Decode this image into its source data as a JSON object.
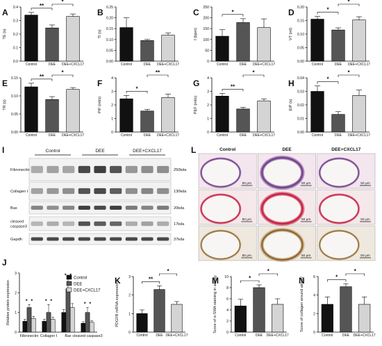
{
  "palette": {
    "control": "#111111",
    "dee": "#555555",
    "cxcl": "#d4d4d4",
    "blot_bg": "#f2f2f2",
    "band": "#2b2b2b",
    "he_bg": "#f3e6ee",
    "he_tissue": "#b786b8",
    "he_nuclei": "#5a3f86",
    "sr_bg": "#f5e8eb",
    "sr_tissue": "#d9778a",
    "sr_collagen": "#c8143b",
    "ihc_bg": "#eee8de",
    "ihc_tissue": "#cbb89a",
    "ihc_stain": "#8a5a1c"
  },
  "chart_data": [
    {
      "type": "bar",
      "panel": "A",
      "ylabel": "TE (s)",
      "ylim": [
        0,
        0.4
      ],
      "yticks": [
        "0.0",
        "0.1",
        "0.2",
        "0.3",
        "0.4"
      ],
      "categories": [
        "Control",
        "DEE",
        "DEE+CXCL17"
      ],
      "values": [
        0.34,
        0.245,
        0.33
      ],
      "errors": [
        0.02,
        0.022,
        0.018
      ],
      "sig": [
        {
          "from": 0,
          "to": 1,
          "label": "**",
          "level": 1
        },
        {
          "from": 1,
          "to": 2,
          "label": "*",
          "level": 2
        }
      ]
    },
    {
      "type": "bar",
      "panel": "B",
      "ylabel": "TI (s)",
      "ylim": [
        0,
        0.25
      ],
      "yticks": [
        "0.00",
        "0.05",
        "0.10",
        "0.15",
        "0.20",
        "0.25"
      ],
      "categories": [
        "Control",
        "DEE",
        "DEE+CXCL17"
      ],
      "values": [
        0.155,
        0.095,
        0.12
      ],
      "errors": [
        0.045,
        0.005,
        0.01
      ],
      "sig": []
    },
    {
      "type": "bar",
      "panel": "C",
      "ylabel": "f (bpm)",
      "ylim": [
        0,
        250
      ],
      "yticks": [
        "0",
        "50",
        "100",
        "150",
        "200",
        "250"
      ],
      "categories": [
        "Control",
        "DEE",
        "DEE+CXCL17"
      ],
      "values": [
        115,
        178,
        155
      ],
      "errors": [
        30,
        18,
        40
      ],
      "sig": [
        {
          "from": 0,
          "to": 1,
          "label": "*",
          "level": 1
        }
      ]
    },
    {
      "type": "bar",
      "panel": "D",
      "ylabel": "VT (ml)",
      "ylim": [
        0,
        0.2
      ],
      "yticks": [
        "0.00",
        "0.05",
        "0.10",
        "0.15",
        "0.20"
      ],
      "categories": [
        "Control",
        "DEE",
        "DEE+CXCL17"
      ],
      "values": [
        0.155,
        0.115,
        0.152
      ],
      "errors": [
        0.01,
        0.008,
        0.012
      ],
      "sig": [
        {
          "from": 0,
          "to": 1,
          "label": "*",
          "level": 1
        },
        {
          "from": 1,
          "to": 2,
          "label": "*",
          "level": 2
        }
      ]
    },
    {
      "type": "bar",
      "panel": "E",
      "ylabel": "TR (s)",
      "ylim": [
        0,
        0.15
      ],
      "yticks": [
        "0.00",
        "0.05",
        "0.10",
        "0.15"
      ],
      "categories": [
        "Control",
        "DEE",
        "DEE+CXCL17"
      ],
      "values": [
        0.125,
        0.09,
        0.118
      ],
      "errors": [
        0.01,
        0.008,
        0.005
      ],
      "sig": [
        {
          "from": 0,
          "to": 1,
          "label": "**",
          "level": 1
        },
        {
          "from": 1,
          "to": 2,
          "label": "*",
          "level": 2
        }
      ]
    },
    {
      "type": "bar",
      "panel": "F",
      "ylabel": "PIF (ml/s)",
      "ylim": [
        0,
        4
      ],
      "yticks": [
        "0",
        "1",
        "2",
        "3",
        "4"
      ],
      "categories": [
        "Control",
        "DEE",
        "DEE+CXCL17"
      ],
      "values": [
        2.45,
        1.55,
        2.55
      ],
      "errors": [
        0.25,
        0.12,
        0.25
      ],
      "sig": [
        {
          "from": 0,
          "to": 1,
          "label": "*",
          "level": 1
        },
        {
          "from": 1,
          "to": 2,
          "label": "**",
          "level": 2
        }
      ]
    },
    {
      "type": "bar",
      "panel": "G",
      "ylabel": "PEF (ml/s)",
      "ylim": [
        0,
        4
      ],
      "yticks": [
        "0",
        "1",
        "2",
        "3",
        "4"
      ],
      "categories": [
        "Control",
        "DEE",
        "DEE+CXCL17"
      ],
      "values": [
        2.65,
        1.7,
        2.3
      ],
      "errors": [
        0.2,
        0.12,
        0.15
      ],
      "sig": [
        {
          "from": 0,
          "to": 1,
          "label": "**",
          "level": 1
        },
        {
          "from": 1,
          "to": 2,
          "label": "*",
          "level": 2
        }
      ]
    },
    {
      "type": "bar",
      "panel": "H",
      "ylabel": "EIP (s)",
      "ylim": [
        0,
        0.04
      ],
      "yticks": [
        "0.00",
        "0.01",
        "0.02",
        "0.03",
        "0.04"
      ],
      "categories": [
        "Control",
        "DEE",
        "DEE+CXCL17"
      ],
      "values": [
        0.03,
        0.013,
        0.027
      ],
      "errors": [
        0.004,
        0.002,
        0.004
      ],
      "sig": [
        {
          "from": 0,
          "to": 1,
          "label": "*",
          "level": 1
        },
        {
          "from": 1,
          "to": 2,
          "label": "*",
          "level": 2
        }
      ]
    },
    {
      "type": "bar",
      "panel": "J",
      "ylabel": "Relative protein expression",
      "ylim": [
        0,
        3
      ],
      "yticks": [
        "0",
        "1",
        "2",
        "3"
      ],
      "categories": [
        "Fibronectin",
        "Collagen Ⅰ",
        "Bax",
        "cleaved caspase3"
      ],
      "series": [
        {
          "name": "Control",
          "values": [
            0.55,
            0.55,
            1.0,
            0.45
          ],
          "errors": [
            0.1,
            0.1,
            0.15,
            0.08
          ]
        },
        {
          "name": "DEE",
          "values": [
            1.25,
            1.0,
            2.2,
            1.0
          ],
          "errors": [
            0.15,
            0.4,
            0.5,
            0.25
          ]
        },
        {
          "name": "DEE+CXCL17",
          "values": [
            0.7,
            0.65,
            1.25,
            0.5
          ],
          "errors": [
            0.1,
            0.1,
            0.2,
            0.08
          ]
        }
      ],
      "legend": "top-right",
      "sig_stars": [
        [
          "*",
          "*"
        ],
        [
          "*",
          "*"
        ],
        [
          "*",
          "*"
        ],
        [
          "*",
          "*"
        ]
      ]
    },
    {
      "type": "bar",
      "panel": "K",
      "ylabel": "PDGFB mRNA expression",
      "ylim": [
        0,
        3
      ],
      "yticks": [
        "0",
        "1",
        "2",
        "3"
      ],
      "categories": [
        "Control",
        "DEE",
        "DEE+CXCL17"
      ],
      "values": [
        1.0,
        2.3,
        1.5
      ],
      "errors": [
        0.2,
        0.2,
        0.15
      ],
      "sig": [
        {
          "from": 0,
          "to": 1,
          "label": "**",
          "level": 1
        },
        {
          "from": 1,
          "to": 2,
          "label": "*",
          "level": 2
        }
      ]
    },
    {
      "type": "bar",
      "panel": "M",
      "ylabel": "Score of α-SMA staining in airway",
      "ylim": [
        0,
        10
      ],
      "yticks": [
        "0",
        "2",
        "4",
        "6",
        "8",
        "10"
      ],
      "categories": [
        "Control",
        "DEE",
        "DEE+CXCL17"
      ],
      "values": [
        4.7,
        8.0,
        5.0
      ],
      "errors": [
        1.2,
        0.5,
        1.0
      ],
      "sig": [
        {
          "from": 0,
          "to": 1,
          "label": "*",
          "level": 1
        },
        {
          "from": 1,
          "to": 2,
          "label": "*",
          "level": 2
        }
      ]
    },
    {
      "type": "bar",
      "panel": "N",
      "ylabel": "Score of collagen around airway",
      "ylim": [
        0,
        6
      ],
      "yticks": [
        "0",
        "2",
        "4",
        "6"
      ],
      "categories": [
        "Control",
        "DEE",
        "DEE+CXCL17"
      ],
      "values": [
        3.0,
        4.9,
        3.0
      ],
      "errors": [
        0.8,
        0.3,
        0.8
      ],
      "sig": [
        {
          "from": 0,
          "to": 1,
          "label": "*",
          "level": 1
        },
        {
          "from": 1,
          "to": 2,
          "label": "*",
          "level": 2
        }
      ]
    }
  ],
  "blot": {
    "panel": "I",
    "groups": [
      "Control",
      "DEE",
      "DEE+CXCL17"
    ],
    "rows": [
      {
        "name": "Fibronectin",
        "size": "250kda",
        "intensity": [
          0.35,
          0.4,
          0.38,
          0.85,
          0.9,
          0.8,
          0.45,
          0.5,
          0.5
        ]
      },
      {
        "name": "Collagen Ⅰ",
        "size": "130kda",
        "intensity": [
          0.4,
          0.45,
          0.5,
          0.8,
          0.85,
          0.75,
          0.5,
          0.55,
          0.5
        ]
      },
      {
        "name": "Bax",
        "size": "20kda",
        "intensity": [
          0.55,
          0.5,
          0.55,
          0.9,
          0.85,
          0.9,
          0.6,
          0.55,
          0.6
        ]
      },
      {
        "name": "cleaved caspase3",
        "size": "17kda",
        "intensity": [
          0.3,
          0.35,
          0.3,
          0.8,
          0.75,
          0.7,
          0.35,
          0.4,
          0.35
        ]
      },
      {
        "name": "Gapdh",
        "size": "37kda",
        "intensity": [
          0.85,
          0.85,
          0.85,
          0.85,
          0.85,
          0.85,
          0.85,
          0.85,
          0.85
        ]
      }
    ]
  },
  "histology": {
    "panel": "L",
    "groups": [
      "Control",
      "DEE",
      "DEE+CXCL17"
    ],
    "rows": [
      "he",
      "sr",
      "ihc"
    ],
    "scale": "50 μm"
  }
}
